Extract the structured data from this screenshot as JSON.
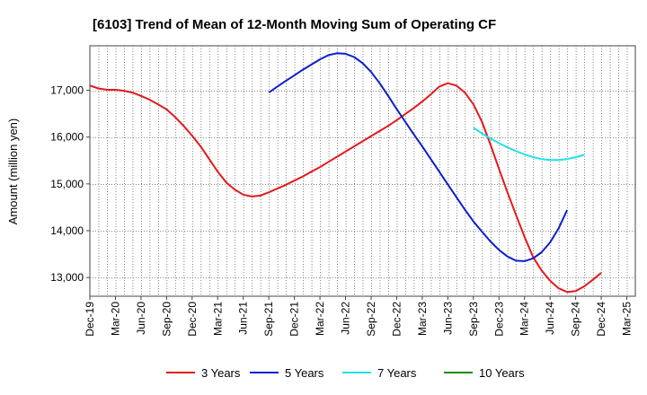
{
  "chart_data": {
    "type": "line",
    "title": "[6103]  Trend of Mean of 12-Month Moving Sum of Operating CF",
    "xlabel": "",
    "ylabel": "Amount (million yen)",
    "ylim": [
      12600,
      17950
    ],
    "yticks": [
      13000,
      14000,
      15000,
      16000,
      17000
    ],
    "ytick_labels": [
      "13,000",
      "14,000",
      "15,000",
      "16,000",
      "17,000"
    ],
    "x_start": "Dec-19",
    "x_count": 64,
    "x_tick_labels": [
      "Dec-19",
      "Mar-20",
      "Jun-20",
      "Sep-20",
      "Dec-20",
      "Mar-21",
      "Jun-21",
      "Sep-21",
      "Dec-21",
      "Mar-22",
      "Jun-22",
      "Sep-22",
      "Dec-22",
      "Mar-23",
      "Jun-23",
      "Sep-23",
      "Dec-23",
      "Mar-24",
      "Jun-24",
      "Sep-24",
      "Dec-24",
      "Mar-25"
    ],
    "grid": true,
    "legend_position": "bottom",
    "series": [
      {
        "name": "3 Years",
        "color": "#e31a1c",
        "start_index": 0,
        "values": [
          17100,
          17040,
          17010,
          17010,
          16990,
          16950,
          16880,
          16800,
          16700,
          16590,
          16430,
          16240,
          16030,
          15800,
          15530,
          15260,
          15030,
          14880,
          14770,
          14730,
          14750,
          14820,
          14900,
          14980,
          15070,
          15160,
          15260,
          15360,
          15470,
          15580,
          15690,
          15800,
          15910,
          16020,
          16130,
          16240,
          16360,
          16490,
          16620,
          16760,
          16910,
          17080,
          17150,
          17100,
          16950,
          16700,
          16330,
          15840,
          15320,
          14820,
          14340,
          13870,
          13440,
          13150,
          12930,
          12770,
          12690,
          12710,
          12810,
          12950,
          13100
        ]
      },
      {
        "name": "5 Years",
        "color": "#0b1fcc",
        "start_index": 21,
        "values": [
          16950,
          17080,
          17200,
          17320,
          17440,
          17550,
          17660,
          17750,
          17790,
          17780,
          17710,
          17580,
          17390,
          17150,
          16880,
          16600,
          16330,
          16060,
          15800,
          15530,
          15260,
          14990,
          14720,
          14450,
          14200,
          13980,
          13770,
          13590,
          13450,
          13360,
          13350,
          13410,
          13540,
          13750,
          14050,
          14440
        ]
      },
      {
        "name": "7 Years",
        "color": "#22e0e8",
        "start_index": 45,
        "values": [
          16200,
          16080,
          15970,
          15870,
          15780,
          15700,
          15630,
          15570,
          15530,
          15510,
          15510,
          15530,
          15570,
          15620
        ]
      },
      {
        "name": "10 Years",
        "color": "#1a8a1a",
        "start_index": 0,
        "values": []
      }
    ]
  }
}
